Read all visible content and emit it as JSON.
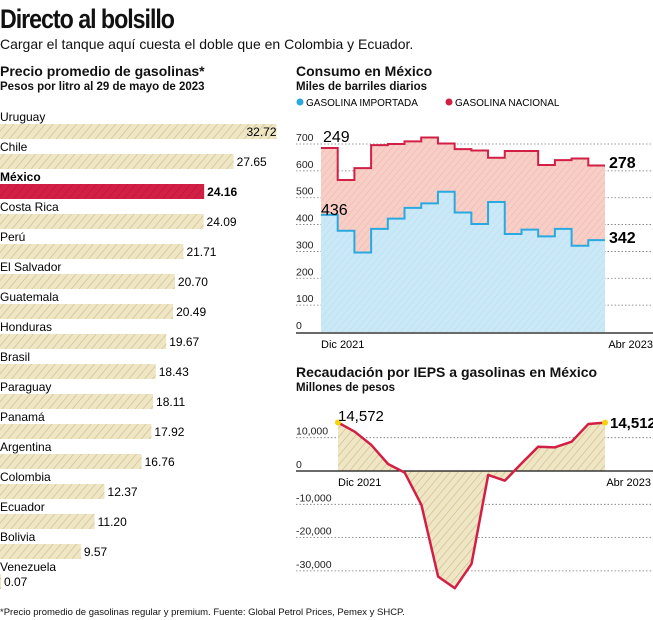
{
  "title": "Directo al bolsillo",
  "subtitle": "Cargar el tanque aquí cuesta el doble que en Colombia y Ecuador.",
  "footnote": "*Precio promedio de gasolinas regular y premium. Fuente: Global Petrol Prices, Pemex y SHCP.",
  "colors": {
    "highlight": "#d21f45",
    "bar": "#efe6c6",
    "hatch": "#cdbd86",
    "importada": "#2aa8e0",
    "nacional": "#d21f45",
    "importada_fill": "#c7e6f6",
    "nacional_fill": "#f6c4bb",
    "line": "#d21f45",
    "marker": "#f5d20a"
  },
  "chart_data": [
    {
      "type": "bar",
      "title": "Precio promedio de gasolinas*",
      "subtitle": "Pesos por litro al 29 de mayo de 2023",
      "categories": [
        "Uruguay",
        "Chile",
        "México",
        "Costa Rica",
        "Perú",
        "El Salvador",
        "Guatemala",
        "Honduras",
        "Brasil",
        "Paraguay",
        "Panamá",
        "Argentina",
        "Colombia",
        "Ecuador",
        "Bolivia",
        "Venezuela"
      ],
      "values": [
        32.72,
        27.65,
        24.16,
        24.09,
        21.71,
        20.7,
        20.49,
        19.67,
        18.43,
        18.11,
        17.92,
        16.76,
        12.37,
        11.2,
        9.57,
        0.07
      ],
      "labels": [
        "32.72",
        "27.65",
        "24.16",
        "24.09",
        "21.71",
        "20.70",
        "20.49",
        "19.67",
        "18.43",
        "18.11",
        "17.92",
        "16.76",
        "12.37",
        "11.20",
        "9.57",
        "0.07"
      ],
      "highlight": "México"
    },
    {
      "type": "area",
      "title": "Consumo en México",
      "subtitle": "Miles de barriles diarios",
      "stacked": true,
      "step": true,
      "x_labels": [
        "Dic 2021",
        "Abr 2023"
      ],
      "ylim": [
        0,
        700
      ],
      "yticks": [
        "0",
        "100",
        "200",
        "300",
        "400",
        "500",
        "600",
        "700"
      ],
      "grid": true,
      "series": [
        {
          "name": "GASOLINA IMPORTADA",
          "values": [
            436,
            377,
            296,
            384,
            422,
            462,
            479,
            522,
            445,
            402,
            484,
            365,
            381,
            356,
            384,
            321,
            342
          ]
        },
        {
          "name": "GASOLINA NACIONAL",
          "values": [
            249,
            189,
            314,
            312,
            278,
            248,
            245,
            180,
            236,
            274,
            165,
            309,
            293,
            266,
            256,
            325,
            278
          ]
        }
      ],
      "annotations": [
        "249",
        "436",
        "278",
        "342"
      ]
    },
    {
      "type": "area",
      "title": "Recaudación por IEPS a gasolinas en México",
      "subtitle": "Millones de pesos",
      "x_labels": [
        "Dic 2021",
        "Abr 2023"
      ],
      "ylim": [
        -36000,
        15000
      ],
      "yticks": [
        "10,000",
        "0",
        "-10,000",
        "-20,000",
        "-30,000"
      ],
      "grid": true,
      "values": [
        14572,
        11800,
        7800,
        2100,
        -500,
        -10200,
        -31700,
        -35200,
        -27900,
        -1200,
        -2900,
        2300,
        7300,
        7100,
        8800,
        14100,
        14512
      ],
      "annotations": [
        "14,572",
        "14,512"
      ]
    }
  ]
}
